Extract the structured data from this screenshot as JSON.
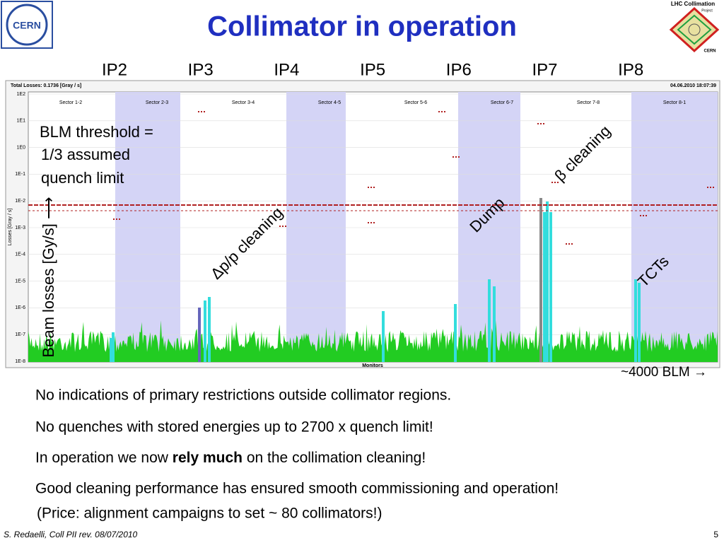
{
  "header": {
    "title": "Collimator in operation",
    "logo_left": "CERN",
    "logo_right": [
      "LHC Collimation",
      "Project",
      "CERN"
    ]
  },
  "ip_labels": [
    "IP2",
    "IP3",
    "IP4",
    "IP5",
    "IP6",
    "IP7",
    "IP8"
  ],
  "plot": {
    "total_losses": "Total Losses: 0.1736 [Gray / s]",
    "timestamp": "04.06.2010 18:07:39",
    "sectors": [
      "Sector 1-2",
      "Sector 2-3",
      "Sector 3-4",
      "Sector 4-5",
      "Sector 5-6",
      "Sector 6-7",
      "Sector 7-8",
      "Sector 8-1"
    ],
    "y_axis_label": "Losses [Gray / s]",
    "y_ticks": [
      "1E2",
      "1E1",
      "1E0",
      "1E-1",
      "1E-2",
      "1E-3",
      "1E-4",
      "1E-5",
      "1E-6",
      "1E-7",
      "1E-8"
    ],
    "x_axis_label": "Monitors"
  },
  "annotations": {
    "threshold": [
      "BLM threshold =",
      "1/3 assumed",
      "quench limit"
    ],
    "beam_losses": "Beam losses [Gy/s] ⟶",
    "dp_cleaning": "Δp/p cleaning",
    "dump": "Dump",
    "beta_cleaning": "β cleaning",
    "tcts": "TCTs",
    "blm_count": "~4000 BLM →"
  },
  "bullets": [
    "No indications of primary restrictions outside collimator regions.",
    "No quenches with stored energies up to 2700 x quench limit!",
    [
      "In operation we now ",
      "rely much",
      " on the collimation cleaning!"
    ],
    "Good cleaning performance has ensured smooth commissioning and operation!",
    "(Price: alignment campaigns to set ~ 80 collimators!)"
  ],
  "footer": {
    "author": "S. Redaelli, Coll PII rev. 08/07/2010",
    "page": "5"
  }
}
